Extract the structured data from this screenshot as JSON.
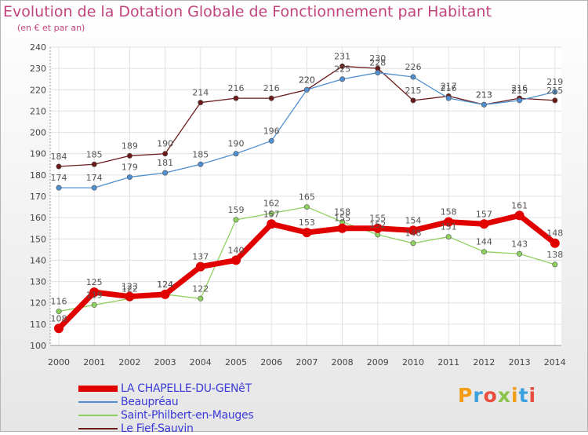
{
  "chart_data": {
    "type": "line",
    "title": "Evolution de la Dotation Globale de Fonctionnement par Habitant",
    "subtitle": "(en € et par an)",
    "xlabel": "",
    "ylabel": "",
    "categories": [
      "2000",
      "2001",
      "2002",
      "2003",
      "2004",
      "2005",
      "2006",
      "2007",
      "2008",
      "2009",
      "2010",
      "2011",
      "2012",
      "2013",
      "2014"
    ],
    "ylim": [
      100,
      240
    ],
    "yticks": [
      100,
      110,
      120,
      130,
      140,
      150,
      160,
      170,
      180,
      190,
      200,
      210,
      220,
      230,
      240
    ],
    "grid": true,
    "series": [
      {
        "name": "Le Fief-Sauvin",
        "color": "#6b1a1a",
        "values": [
          184,
          185,
          189,
          190,
          214,
          216,
          216,
          220,
          231,
          230,
          215,
          217,
          213,
          216,
          215
        ]
      },
      {
        "name": "Beaupréau",
        "color": "#4f8fcf",
        "values": [
          174,
          174,
          179,
          181,
          185,
          190,
          196,
          220,
          225,
          228,
          226,
          216,
          213,
          215,
          219
        ]
      },
      {
        "name": "Saint-Philbert-en-Mauges",
        "color": "#8ed05e",
        "values": [
          116,
          119,
          122,
          124,
          122,
          159,
          162,
          165,
          158,
          152,
          148,
          151,
          144,
          143,
          138
        ]
      },
      {
        "name": "LA CHAPELLE-DU-GENêT",
        "color": "#e00000",
        "values": [
          108,
          125,
          123,
          124,
          137,
          140,
          157,
          153,
          155,
          155,
          154,
          158,
          157,
          161,
          148
        ]
      }
    ]
  },
  "legend": {
    "items": [
      {
        "label": "LA CHAPELLE-DU-GENêT",
        "color": "#e00000"
      },
      {
        "label": "Beaupréau",
        "color": "#4f8fcf"
      },
      {
        "label": "Saint-Philbert-en-Mauges",
        "color": "#8ed05e"
      },
      {
        "label": "Le Fief-Sauvin",
        "color": "#6b1a1a"
      }
    ]
  },
  "branding": {
    "logo_text": "Proxiti"
  }
}
